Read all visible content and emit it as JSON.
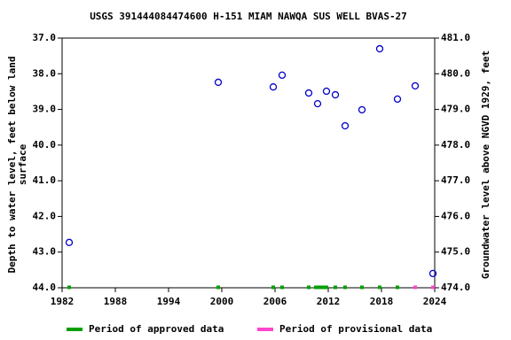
{
  "chart_data": {
    "type": "scatter",
    "title": "USGS 391444084474600 H-151 MIAM NAWQA SUS WELL BVAS-27",
    "ylabel": [
      "Depth to water level, feet below land",
      "surface"
    ],
    "y2label": "Groundwater level above NGVD 1929, feet",
    "xlim": [
      1982,
      2024
    ],
    "xticks": [
      1982,
      1988,
      1994,
      2000,
      2006,
      2012,
      2018,
      2024
    ],
    "ylim": [
      44,
      37
    ],
    "yticks": [
      {
        "value": 37,
        "label": "37.0"
      },
      {
        "value": 38,
        "label": "38.0"
      },
      {
        "value": 39,
        "label": "39.0"
      },
      {
        "value": 40,
        "label": "40.0"
      },
      {
        "value": 41,
        "label": "41.0"
      },
      {
        "value": 42,
        "label": "42.0"
      },
      {
        "value": 43,
        "label": "43.0"
      },
      {
        "value": 44,
        "label": "44.0"
      }
    ],
    "y2lim": [
      474,
      481
    ],
    "y2ticks": [
      {
        "value": 481,
        "label": "481.0"
      },
      {
        "value": 480,
        "label": "480.0"
      },
      {
        "value": 479,
        "label": "479.0"
      },
      {
        "value": 478,
        "label": "478.0"
      },
      {
        "value": 477,
        "label": "477.0"
      },
      {
        "value": 476,
        "label": "476.0"
      },
      {
        "value": 475,
        "label": "475.0"
      },
      {
        "value": 474,
        "label": "474.0"
      }
    ],
    "series": [
      {
        "name": "Depth to water level",
        "color": "#0000cc",
        "x": [
          1982.8,
          1999.6,
          2005.8,
          2006.8,
          2009.8,
          2010.8,
          2011.8,
          2012.8,
          2013.9,
          2015.8,
          2017.8,
          2019.8,
          2021.8,
          2023.8
        ],
        "values": [
          42.73,
          38.24,
          38.37,
          38.04,
          38.54,
          38.84,
          38.49,
          38.59,
          39.46,
          39.01,
          37.3,
          38.71,
          38.34,
          43.6
        ]
      }
    ],
    "periods": [
      {
        "name": "Period of approved data",
        "color": "#00a000",
        "x": [
          1982.8,
          1999.6,
          2005.8,
          2006.8,
          2009.8,
          2010.6,
          2011.0,
          2011.4,
          2011.8,
          2012.8,
          2013.9,
          2015.8,
          2017.8,
          2019.8
        ]
      },
      {
        "name": "Period of provisional data",
        "color": "#ff44cc",
        "x": [
          2021.8,
          2023.8
        ]
      }
    ]
  }
}
